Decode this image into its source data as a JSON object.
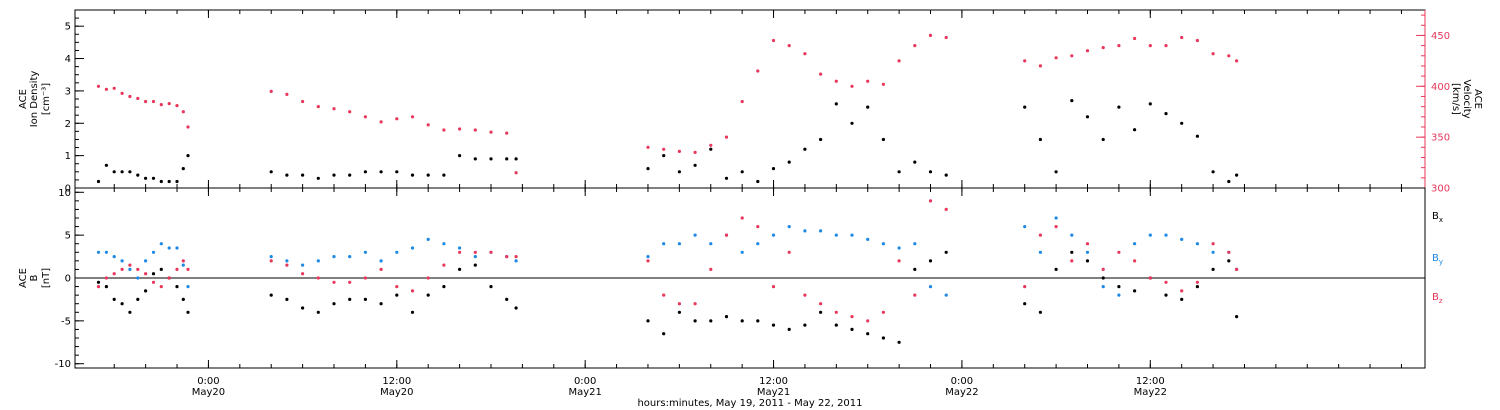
{
  "chart_data": [
    {
      "type": "scatter",
      "panel": "plasma",
      "left_axis_label": [
        "ACE",
        "Ion Density",
        "[cm⁻³]"
      ],
      "right_axis_label": [
        "ACE",
        "Velocity",
        "[km/s]"
      ],
      "left_ylim": [
        0,
        5.5
      ],
      "right_ylim": [
        300,
        475
      ],
      "left_ticks": [
        "0",
        "1",
        "2",
        "3",
        "4",
        "5"
      ],
      "right_ticks": [
        "300",
        "350",
        "400",
        "450"
      ],
      "colors": {
        "density": "#000000",
        "velocity": "#e8375a"
      },
      "series": [
        {
          "key": "density",
          "hours": [
            -7,
            -6.5,
            -6,
            -5.5,
            -5,
            -4.5,
            -4,
            -3.5,
            -3,
            -2.5,
            -2,
            -1.6,
            -1.3,
            4,
            5,
            6,
            7,
            8,
            9,
            10,
            11,
            12,
            13,
            14,
            15,
            16,
            17,
            18,
            19,
            19.6,
            28,
            29,
            30,
            31,
            32,
            33,
            34,
            35,
            36,
            37,
            38,
            39,
            40,
            41,
            42,
            43,
            44,
            45,
            46,
            47,
            52,
            53,
            54,
            55,
            56,
            57,
            58,
            59,
            60,
            61,
            62,
            63,
            64,
            65,
            65.5
          ],
          "values": [
            0.2,
            0.7,
            0.5,
            0.5,
            0.5,
            0.4,
            0.3,
            0.3,
            0.2,
            0.2,
            0.2,
            0.6,
            1.0,
            0.5,
            0.4,
            0.4,
            0.3,
            0.4,
            0.4,
            0.5,
            0.5,
            0.5,
            0.4,
            0.4,
            0.4,
            1.0,
            0.9,
            0.9,
            0.9,
            0.9,
            0.6,
            1.0,
            0.5,
            0.7,
            1.2,
            0.3,
            0.5,
            0.2,
            0.6,
            0.8,
            1.2,
            1.5,
            2.6,
            2.0,
            2.5,
            1.5,
            0.5,
            0.8,
            0.5,
            0.4,
            2.5,
            1.5,
            0.5,
            2.7,
            2.2,
            1.5,
            2.5,
            1.8,
            2.6,
            2.3,
            2.0,
            1.6,
            0.5,
            0.2,
            0.4
          ]
        },
        {
          "key": "velocity",
          "hours": [
            -7,
            -6.5,
            -6,
            -5.5,
            -5,
            -4.5,
            -4,
            -3.5,
            -3,
            -2.5,
            -2,
            -1.6,
            -1.3,
            4,
            5,
            6,
            7,
            8,
            9,
            10,
            11,
            12,
            13,
            14,
            15,
            16,
            17,
            18,
            19,
            19.6,
            28,
            29,
            30,
            31,
            32,
            33,
            34,
            35,
            36,
            37,
            38,
            39,
            40,
            41,
            42,
            43,
            44,
            45,
            46,
            47,
            52,
            53,
            54,
            55,
            56,
            57,
            58,
            59,
            60,
            61,
            62,
            63,
            64,
            65,
            65.5
          ],
          "values": [
            400,
            397,
            398,
            393,
            390,
            388,
            385,
            385,
            382,
            383,
            381,
            375,
            360,
            395,
            392,
            385,
            380,
            378,
            375,
            370,
            365,
            368,
            370,
            362,
            357,
            358,
            357,
            355,
            354,
            315,
            340,
            338,
            336,
            335,
            342,
            350,
            385,
            415,
            445,
            440,
            432,
            412,
            405,
            400,
            405,
            402,
            425,
            440,
            450,
            448,
            425,
            420,
            428,
            430,
            435,
            438,
            440,
            447,
            440,
            440,
            448,
            445,
            432,
            430,
            425
          ]
        }
      ]
    },
    {
      "type": "scatter",
      "panel": "magnetic-field",
      "left_axis_label": [
        "ACE",
        "B",
        "[nT]"
      ],
      "ylim": [
        -10.5,
        10.5
      ],
      "ticks": [
        "-10",
        "-5",
        "0",
        "5",
        "10"
      ],
      "colors": {
        "Bx": "#000000",
        "By": "#1e88e5",
        "Bz": "#e8375a"
      },
      "series": [
        {
          "name": "Bx",
          "hours": [
            -7,
            -6.5,
            -6,
            -5.5,
            -5,
            -4.5,
            -4,
            -3.5,
            -3,
            -2.5,
            -2,
            -1.6,
            -1.3,
            4,
            5,
            6,
            7,
            8,
            9,
            10,
            11,
            12,
            13,
            14,
            15,
            16,
            17,
            18,
            19,
            19.6,
            28,
            29,
            30,
            31,
            32,
            33,
            34,
            35,
            36,
            37,
            38,
            39,
            40,
            41,
            42,
            43,
            44,
            45,
            46,
            47,
            52,
            53,
            54,
            55,
            56,
            57,
            58,
            59,
            60,
            61,
            62,
            63,
            64,
            65,
            65.5
          ],
          "values": [
            -0.5,
            -1,
            -2.5,
            -3,
            -4,
            -2.5,
            -1.5,
            0.5,
            1,
            0,
            -1,
            -2.5,
            -4,
            -2,
            -2.5,
            -3.5,
            -4,
            -3,
            -2.5,
            -2.5,
            -3,
            -2,
            -4,
            -2,
            -1,
            1,
            1.5,
            -1,
            -2.5,
            -3.5,
            -5,
            -6.5,
            -4,
            -5,
            -5,
            -4.5,
            -5,
            -5,
            -5.5,
            -6,
            -5.5,
            -4,
            -5.5,
            -6,
            -6.5,
            -7,
            -7.5,
            1,
            2,
            3,
            -3,
            -4,
            1,
            3,
            2,
            0,
            -1,
            -1.5,
            0,
            -2,
            -2.5,
            -1,
            1,
            2,
            -4.5
          ]
        },
        {
          "name": "By",
          "hours": [
            -7,
            -6.5,
            -6,
            -5.5,
            -5,
            -4.5,
            -4,
            -3.5,
            -3,
            -2.5,
            -2,
            -1.6,
            -1.3,
            4,
            5,
            6,
            7,
            8,
            9,
            10,
            11,
            12,
            13,
            14,
            15,
            16,
            17,
            18,
            19,
            19.6,
            28,
            29,
            30,
            31,
            32,
            33,
            34,
            35,
            36,
            37,
            38,
            39,
            40,
            41,
            42,
            43,
            44,
            45,
            46,
            47,
            52,
            53,
            54,
            55,
            56,
            57,
            58,
            59,
            60,
            61,
            62,
            63,
            64,
            65,
            65.5
          ],
          "values": [
            3,
            3,
            2.5,
            2,
            1,
            0,
            2,
            3,
            4,
            3.5,
            3.5,
            1.5,
            -1,
            2.5,
            2,
            1.5,
            2,
            2.5,
            2.5,
            3,
            2,
            3,
            3.5,
            4.5,
            4,
            3.5,
            2.5,
            3,
            2.5,
            2,
            2.5,
            4,
            4,
            5,
            4,
            5,
            3,
            4,
            5,
            6,
            5.5,
            5.5,
            5,
            5,
            4.5,
            4,
            3.5,
            4,
            -1,
            -2,
            6,
            3,
            7,
            5,
            3,
            -1,
            -2,
            4,
            5,
            5,
            4.5,
            4,
            3,
            3,
            1
          ]
        },
        {
          "name": "Bz",
          "hours": [
            -7,
            -6.5,
            -6,
            -5.5,
            -5,
            -4.5,
            -4,
            -3.5,
            -3,
            -2.5,
            -2,
            -1.6,
            -1.3,
            4,
            5,
            6,
            7,
            8,
            9,
            10,
            11,
            12,
            13,
            14,
            15,
            16,
            17,
            18,
            19,
            19.6,
            28,
            29,
            30,
            31,
            32,
            33,
            34,
            35,
            36,
            37,
            38,
            39,
            40,
            41,
            42,
            43,
            44,
            45,
            46,
            47,
            52,
            53,
            54,
            55,
            56,
            57,
            58,
            59,
            60,
            61,
            62,
            63,
            64,
            65,
            65.5
          ],
          "values": [
            -1,
            0,
            0.5,
            1,
            1.5,
            1,
            0.5,
            -0.5,
            -1,
            0,
            1,
            2,
            1,
            2,
            1.5,
            0.5,
            0,
            -0.5,
            -0.5,
            0,
            1,
            -1,
            -1.5,
            0,
            1.5,
            3,
            3,
            3,
            2.5,
            2.5,
            2,
            -2,
            -3,
            -3,
            1,
            5,
            7,
            6,
            -1,
            3,
            -2,
            -3,
            -4,
            -4.5,
            -5,
            -4,
            2,
            -2,
            9,
            8,
            -1,
            5,
            6,
            2,
            4,
            1,
            3,
            2,
            0,
            -0.5,
            -1.5,
            -0.5,
            4,
            3,
            1
          ]
        }
      ],
      "legend": [
        "B",
        "B",
        "B"
      ],
      "legend_subscripts": [
        "x",
        "y",
        "z"
      ]
    }
  ],
  "x_axis": {
    "title": "hours:minutes, May 19, 2011 - May 22, 2011",
    "range_hours": [
      -8.5,
      77.5
    ],
    "ticks": [
      {
        "hour": 0,
        "time": "0:00",
        "date": "May20"
      },
      {
        "hour": 12,
        "time": "12:00",
        "date": "May20"
      },
      {
        "hour": 24,
        "time": "0:00",
        "date": "May21"
      },
      {
        "hour": 36,
        "time": "12:00",
        "date": "May21"
      },
      {
        "hour": 48,
        "time": "0:00",
        "date": "May22"
      },
      {
        "hour": 60,
        "time": "12:00",
        "date": "May22"
      }
    ]
  }
}
